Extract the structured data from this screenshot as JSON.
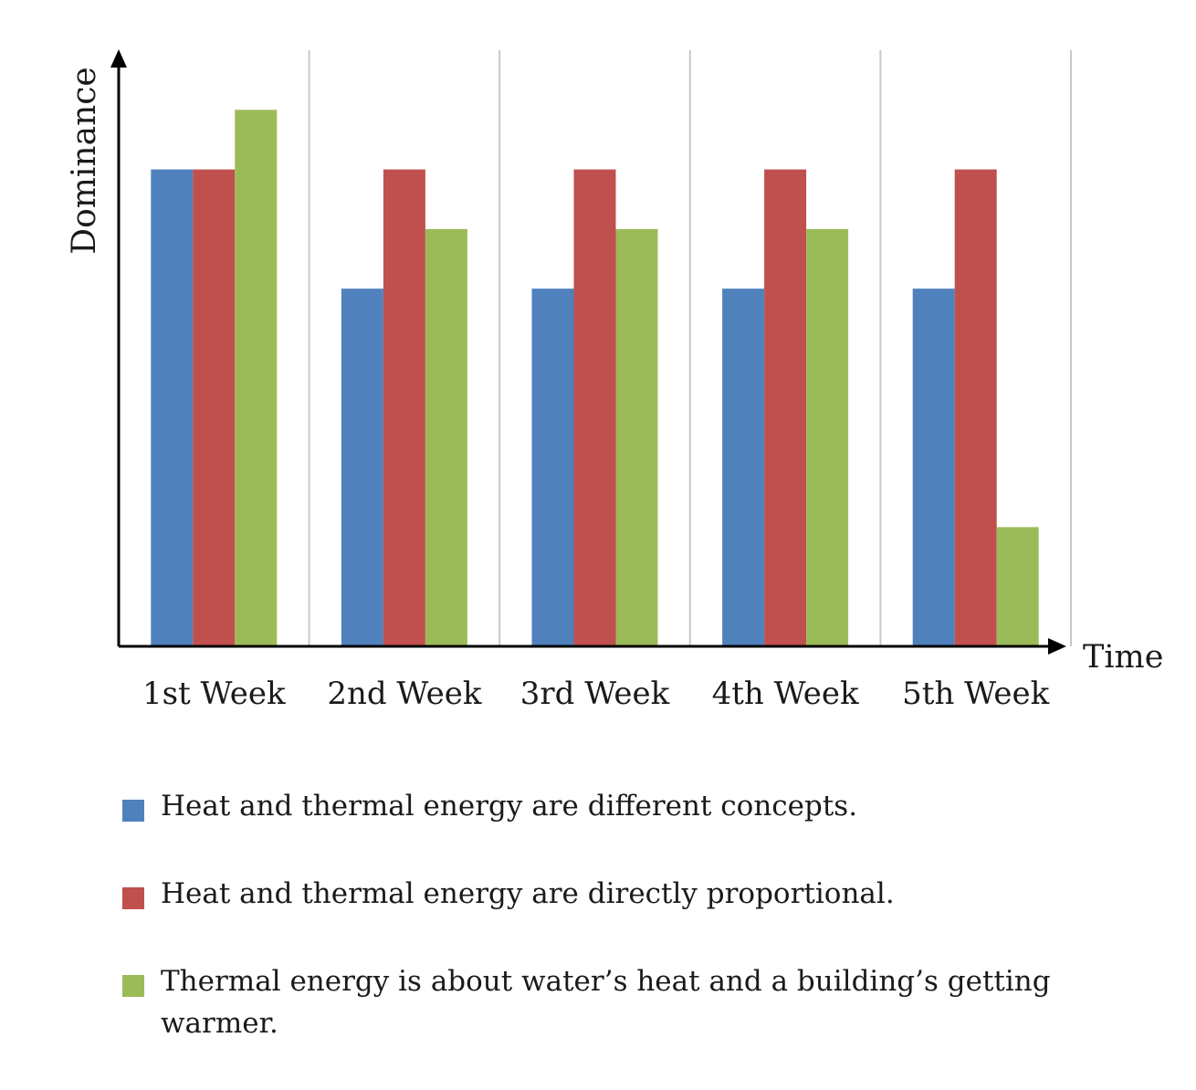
{
  "chart_data": {
    "type": "bar",
    "title": "",
    "xlabel": "Time",
    "ylabel": "Dominance",
    "categories": [
      "1st Week",
      "2nd Week",
      "3rd Week",
      "4th Week",
      "5th Week"
    ],
    "ylim": [
      0,
      5
    ],
    "grid": "vertical separators between categories",
    "legend_position": "bottom",
    "series": [
      {
        "name": "Heat and thermal energy are different concepts.",
        "color": "#4f81bd",
        "values": [
          4,
          3,
          3,
          3,
          3
        ]
      },
      {
        "name": "Heat and thermal energy are directly proportional.",
        "color": "#c0504d",
        "values": [
          4,
          4,
          4,
          4,
          4
        ]
      },
      {
        "name": "Thermal energy is about water’s heat and a building’s getting warmer.",
        "color": "#9bbb59",
        "values": [
          4.5,
          3.5,
          3.5,
          3.5,
          1
        ]
      }
    ]
  }
}
